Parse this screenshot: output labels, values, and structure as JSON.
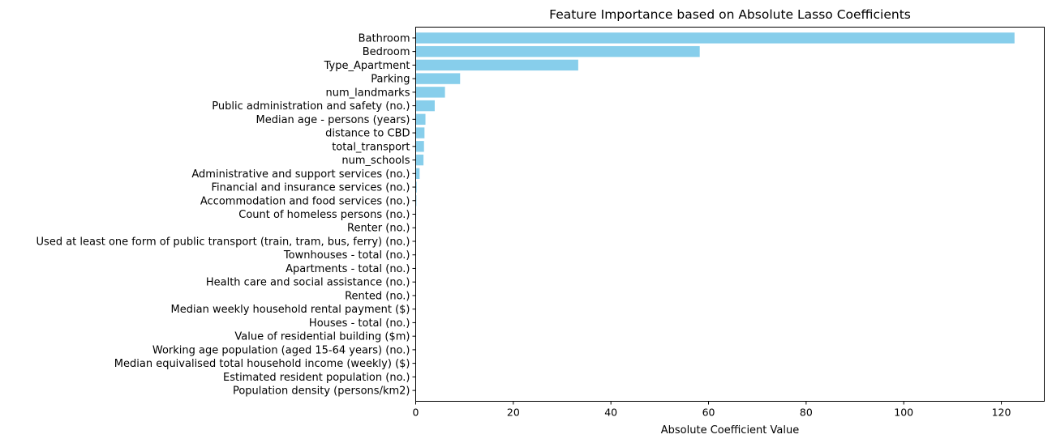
{
  "chart_data": {
    "type": "bar",
    "orientation": "horizontal",
    "title": "Feature Importance based on Absolute Lasso Coefficients",
    "xlabel": "Absolute Coefficient Value",
    "ylabel": "",
    "xlim": [
      0,
      128.8
    ],
    "xticks": [
      0,
      20,
      40,
      60,
      80,
      100,
      120
    ],
    "grid": false,
    "color": "#87ceeb",
    "categories": [
      "Bathroom",
      "Bedroom",
      "Type_Apartment",
      "Parking",
      "num_landmarks",
      "Public administration and safety (no.)",
      "Median age - persons (years)",
      "distance to CBD",
      "total_transport",
      "num_schools",
      "Administrative and support services (no.)",
      "Financial and insurance services (no.)",
      "Accommodation and food services (no.)",
      "Count of homeless persons (no.)",
      "Renter (no.)",
      "Used at least one form of public transport (train, tram, bus, ferry) (no.)",
      "Townhouses - total (no.)",
      "Apartments - total (no.)",
      "Health care and social assistance (no.)",
      "Rented (no.)",
      "Median weekly household rental payment ($)",
      "Houses - total (no.)",
      "Value of residential building ($m)",
      "Working age population (aged 15-64 years) (no.)",
      "Median equivalised total household income (weekly) ($)",
      "Estimated resident population (no.)",
      "Population density (persons/km2)"
    ],
    "values": [
      122.7,
      58.2,
      33.3,
      9.1,
      6.0,
      3.9,
      2.0,
      1.8,
      1.7,
      1.6,
      0.8,
      0.2,
      0.15,
      0.1,
      0.05,
      0.05,
      0.03,
      0.03,
      0.02,
      0.02,
      0.02,
      0.01,
      0.01,
      0.01,
      0.01,
      0.01,
      0.01
    ]
  }
}
